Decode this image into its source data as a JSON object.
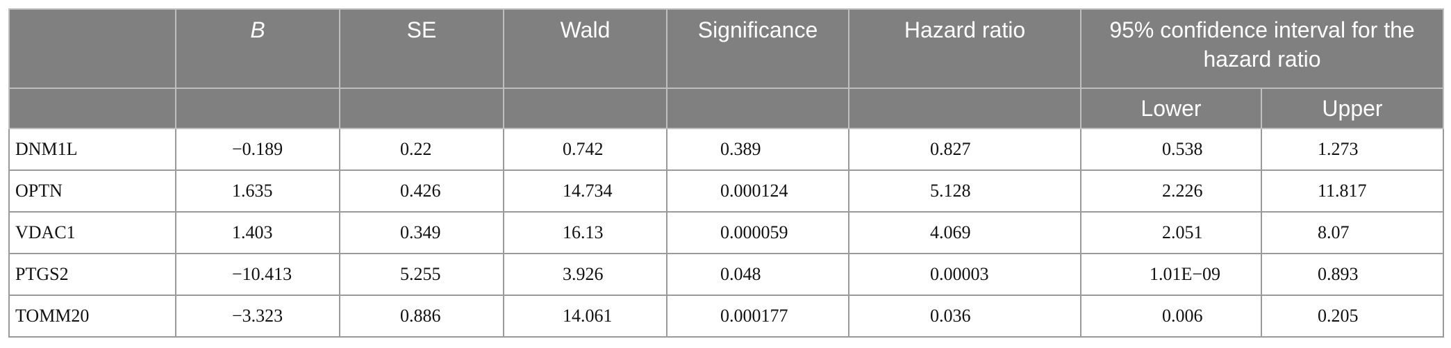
{
  "table": {
    "headers": {
      "col0": "",
      "b": "B",
      "se": "SE",
      "wald": "Wald",
      "significance": "Significance",
      "hazard_ratio": "Hazard ratio",
      "ci": "95% confidence interval for the hazard ratio",
      "lower": "Lower",
      "upper": "Upper"
    },
    "rows": [
      {
        "gene": "DNM1L",
        "b": "−0.189",
        "se": "0.22",
        "wald": "0.742",
        "sig": "0.389",
        "hr": "0.827",
        "lower": "0.538",
        "upper": "1.273"
      },
      {
        "gene": "OPTN",
        "b": "1.635",
        "se": "0.426",
        "wald": "14.734",
        "sig": "0.000124",
        "hr": "5.128",
        "lower": "2.226",
        "upper": "11.817"
      },
      {
        "gene": "VDAC1",
        "b": "1.403",
        "se": "0.349",
        "wald": "16.13",
        "sig": "0.000059",
        "hr": "4.069",
        "lower": "2.051",
        "upper": "8.07"
      },
      {
        "gene": "PTGS2",
        "b": "−10.413",
        "se": "5.255",
        "wald": "3.926",
        "sig": "0.048",
        "hr": "0.00003",
        "lower": "1.01E−09",
        "upper": "0.893"
      },
      {
        "gene": "TOMM20",
        "b": "−3.323",
        "se": "0.886",
        "wald": "14.061",
        "sig": "0.000177",
        "hr": "0.036",
        "lower": "0.006",
        "upper": "0.205"
      }
    ]
  }
}
